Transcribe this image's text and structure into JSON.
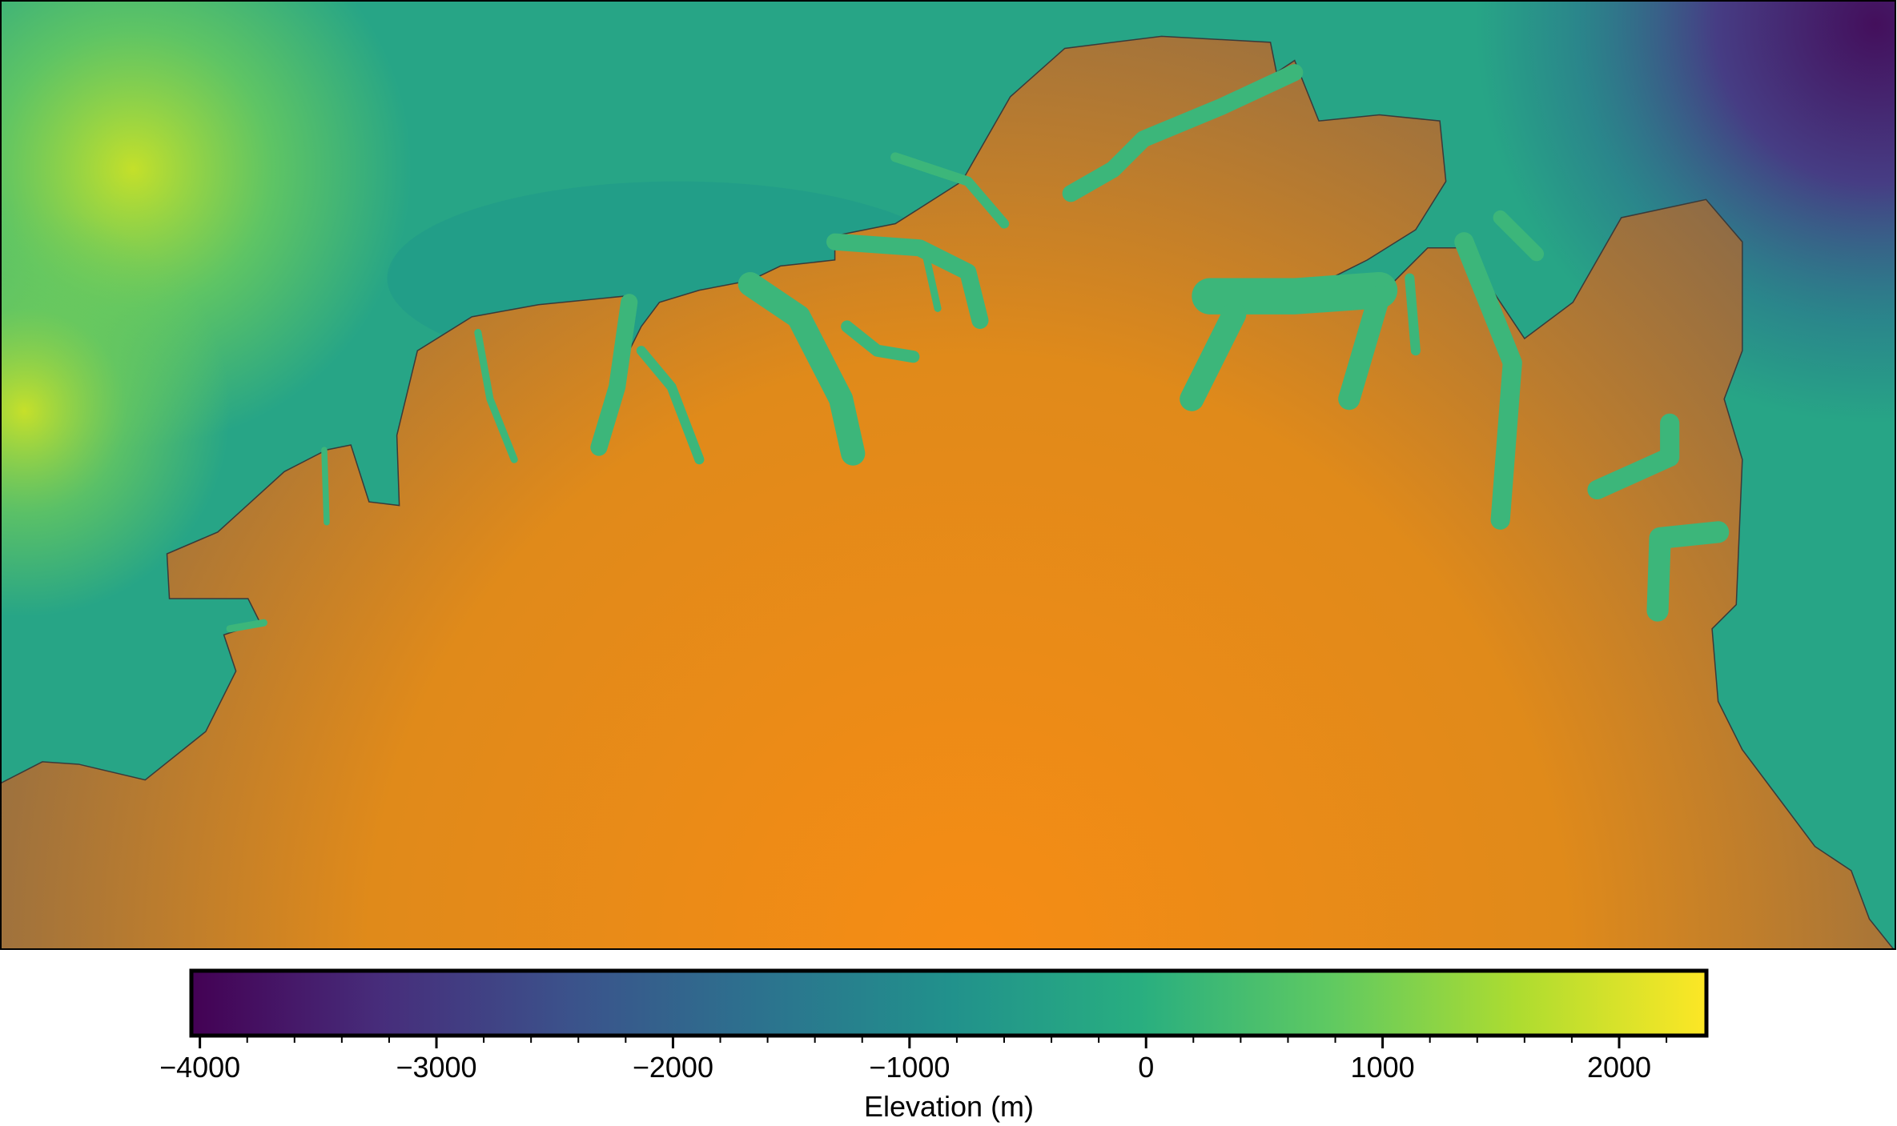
{
  "chart_data": {
    "type": "colorbar",
    "xlabel": "Elevation (m)",
    "xlim": [
      -4036,
      2369
    ],
    "xticks": [
      {
        "value": -4000,
        "label": "−4000"
      },
      {
        "value": -3000,
        "label": "−3000"
      },
      {
        "value": -2000,
        "label": "−2000"
      },
      {
        "value": -1000,
        "label": "−1000"
      },
      0,
      1000,
      2000
    ],
    "minor_ticks": [
      -3800,
      -3600,
      -3400,
      -3200,
      -2800,
      -2600,
      -2400,
      -2200,
      -1800,
      -1600,
      -1400,
      -1200,
      -800,
      -600,
      -400,
      -200,
      200,
      400,
      600,
      800,
      1200,
      1400,
      1600,
      1800,
      2200
    ],
    "colors": [
      "#440154",
      "#472d7b",
      "#3b528b",
      "#2c728e",
      "#21918c",
      "#28ae80",
      "#5ec962",
      "#addc30",
      "#fde725"
    ]
  }
}
